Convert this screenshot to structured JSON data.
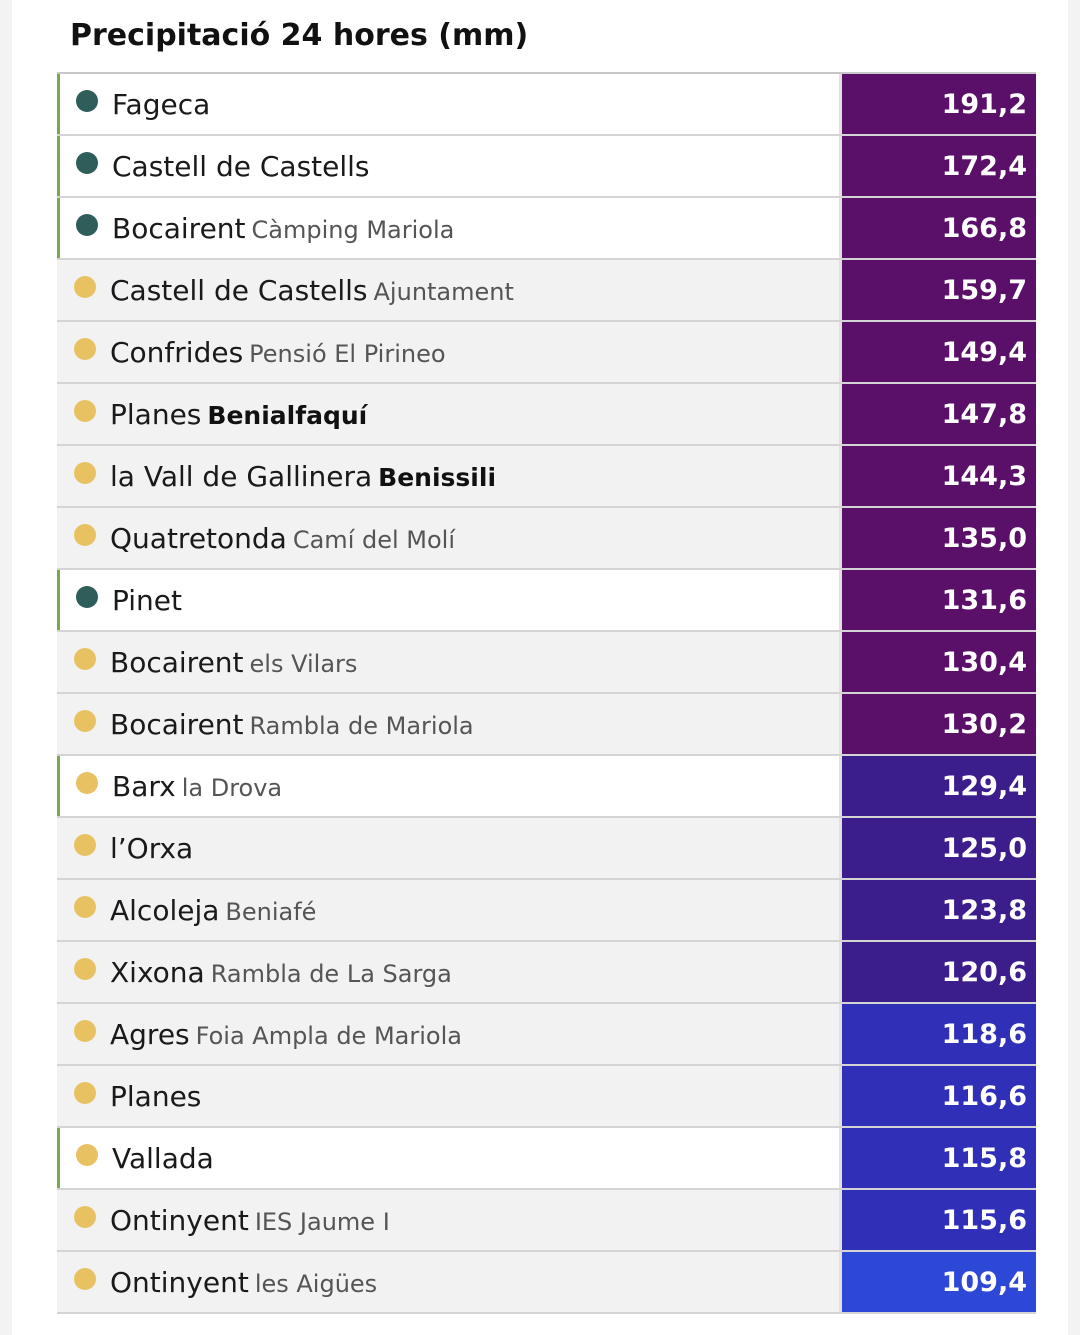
{
  "title": "Precipitació 24 hores (mm)",
  "colors": {
    "highlight_border": "#7aa84f",
    "dot_teal": "#2f5e5a",
    "dot_yellow": "#e8c262",
    "value_purple": "#5a1068",
    "value_indigo": "#3b1e8c",
    "value_blue": "#2f2fb8",
    "value_bright_blue": "#2d48d6"
  },
  "rows": [
    {
      "name": "Fageca",
      "sub": "",
      "sub_bold": false,
      "value": "191,2",
      "highlight": true,
      "dot": "teal",
      "value_color": "#5a1068"
    },
    {
      "name": "Castell de Castells",
      "sub": "",
      "sub_bold": false,
      "value": "172,4",
      "highlight": true,
      "dot": "teal",
      "value_color": "#5a1068"
    },
    {
      "name": "Bocairent",
      "sub": "Càmping Mariola",
      "sub_bold": false,
      "value": "166,8",
      "highlight": true,
      "dot": "teal",
      "value_color": "#5a1068"
    },
    {
      "name": "Castell de Castells",
      "sub": "Ajuntament",
      "sub_bold": false,
      "value": "159,7",
      "highlight": false,
      "dot": "yellow",
      "value_color": "#5a1068"
    },
    {
      "name": "Confrides",
      "sub": "Pensió El Pirineo",
      "sub_bold": false,
      "value": "149,4",
      "highlight": false,
      "dot": "yellow",
      "value_color": "#5a1068"
    },
    {
      "name": "Planes",
      "sub": "Benialfaquí",
      "sub_bold": true,
      "value": "147,8",
      "highlight": false,
      "dot": "yellow",
      "value_color": "#5a1068"
    },
    {
      "name": "la Vall de Gallinera",
      "sub": "Benissili",
      "sub_bold": true,
      "value": "144,3",
      "highlight": false,
      "dot": "yellow",
      "value_color": "#5a1068"
    },
    {
      "name": "Quatretonda",
      "sub": "Camí del Molí",
      "sub_bold": false,
      "value": "135,0",
      "highlight": false,
      "dot": "yellow",
      "value_color": "#5a1068"
    },
    {
      "name": "Pinet",
      "sub": "",
      "sub_bold": false,
      "value": "131,6",
      "highlight": true,
      "dot": "teal",
      "value_color": "#5a1068"
    },
    {
      "name": "Bocairent",
      "sub": "els Vilars",
      "sub_bold": false,
      "value": "130,4",
      "highlight": false,
      "dot": "yellow",
      "value_color": "#5a1068"
    },
    {
      "name": "Bocairent",
      "sub": "Rambla de Mariola",
      "sub_bold": false,
      "value": "130,2",
      "highlight": false,
      "dot": "yellow",
      "value_color": "#5a1068"
    },
    {
      "name": "Barx",
      "sub": "la Drova",
      "sub_bold": false,
      "value": "129,4",
      "highlight": true,
      "dot": "yellow",
      "value_color": "#3b1e8c"
    },
    {
      "name": "l’Orxa",
      "sub": "",
      "sub_bold": false,
      "value": "125,0",
      "highlight": false,
      "dot": "yellow",
      "value_color": "#3b1e8c"
    },
    {
      "name": "Alcoleja",
      "sub": "Beniafé",
      "sub_bold": false,
      "value": "123,8",
      "highlight": false,
      "dot": "yellow",
      "value_color": "#3b1e8c"
    },
    {
      "name": "Xixona",
      "sub": "Rambla de La Sarga",
      "sub_bold": false,
      "value": "120,6",
      "highlight": false,
      "dot": "yellow",
      "value_color": "#3b1e8c"
    },
    {
      "name": "Agres",
      "sub": "Foia Ampla de Mariola",
      "sub_bold": false,
      "value": "118,6",
      "highlight": false,
      "dot": "yellow",
      "value_color": "#2f2fb8"
    },
    {
      "name": "Planes",
      "sub": "",
      "sub_bold": false,
      "value": "116,6",
      "highlight": false,
      "dot": "yellow",
      "value_color": "#2f2fb8"
    },
    {
      "name": "Vallada",
      "sub": "",
      "sub_bold": false,
      "value": "115,8",
      "highlight": true,
      "dot": "yellow",
      "value_color": "#2f2fb8"
    },
    {
      "name": "Ontinyent",
      "sub": "IES Jaume I",
      "sub_bold": false,
      "value": "115,6",
      "highlight": false,
      "dot": "yellow",
      "value_color": "#2f2fb8"
    },
    {
      "name": "Ontinyent",
      "sub": "les Aigües",
      "sub_bold": false,
      "value": "109,4",
      "highlight": false,
      "dot": "yellow",
      "value_color": "#2d48d6"
    }
  ]
}
